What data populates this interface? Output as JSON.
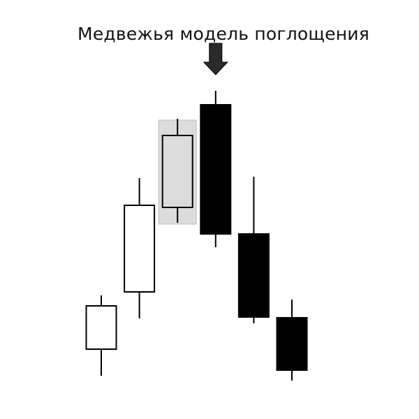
{
  "title": "Медвежья модель поглощения",
  "colors": {
    "background": "#ffffff",
    "bullish_body": "#ffffff",
    "bearish_body": "#000000",
    "outline": "#000000",
    "highlight_fill": "#dcdcdc",
    "highlight_border": "#bdbdbd",
    "arrow": "#2a2a2a"
  },
  "icons": {
    "signal_marker": "arrow-down-icon"
  },
  "candles": [
    {
      "type": "bullish",
      "open": 50,
      "close": 112,
      "high": 127,
      "low": 12,
      "highlighted": false,
      "marked": false
    },
    {
      "type": "bullish",
      "open": 132,
      "close": 256,
      "high": 295,
      "low": 94,
      "highlighted": false,
      "marked": false
    },
    {
      "type": "bullish",
      "open": 253,
      "close": 356,
      "high": 380,
      "low": 231,
      "highlighted": true,
      "marked": false
    },
    {
      "type": "bearish",
      "open": 400,
      "close": 215,
      "high": 420,
      "low": 196,
      "highlighted": false,
      "marked": true
    },
    {
      "type": "bearish",
      "open": 215,
      "close": 96,
      "high": 297,
      "low": 87,
      "highlighted": false,
      "marked": false
    },
    {
      "type": "bearish",
      "open": 95,
      "close": 20,
      "high": 121,
      "low": 5,
      "highlighted": false,
      "marked": false
    }
  ]
}
